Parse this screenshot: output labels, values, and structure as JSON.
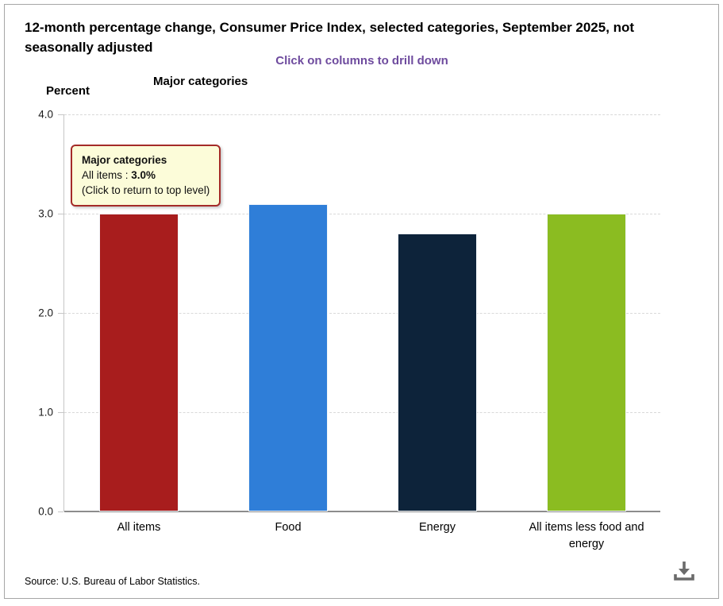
{
  "header": {
    "title": "12-month percentage change, Consumer Price Index, selected categories, September 2025, not seasonally adjusted",
    "subtitle": "Click on columns to drill down",
    "group_label": "Major categories",
    "y_axis_label": "Percent"
  },
  "tooltip": {
    "title": "Major categories",
    "series_label": "All items",
    "separator": " : ",
    "value": "3.0%",
    "hint": "(Click to return to top level)",
    "background": "#FCFCD9",
    "border_color": "#A42B28"
  },
  "chart_data": {
    "type": "bar",
    "title": "Major categories",
    "xlabel": "",
    "ylabel": "Percent",
    "categories": [
      "All items",
      "Food",
      "Energy",
      "All items less food and energy"
    ],
    "values": [
      3.0,
      3.1,
      2.8,
      3.0
    ],
    "colors": [
      "#A81D1D",
      "#2F7ED8",
      "#0D233A",
      "#8BBC21"
    ],
    "ylim": [
      0,
      4
    ],
    "yticks": [
      "0.0",
      "1.0",
      "2.0",
      "3.0",
      "4.0"
    ],
    "grid": "horizontal-dashed",
    "legend": "none"
  },
  "footer": {
    "source": "Source: U.S. Bureau of Labor Statistics."
  },
  "colors": {
    "subtitle_text": "#6E4B9E",
    "axis_line": "#C6C6C6",
    "gridline": "#D9D9D9",
    "baseline": "#8C8C8C",
    "download_icon": "#6B6B6B"
  }
}
